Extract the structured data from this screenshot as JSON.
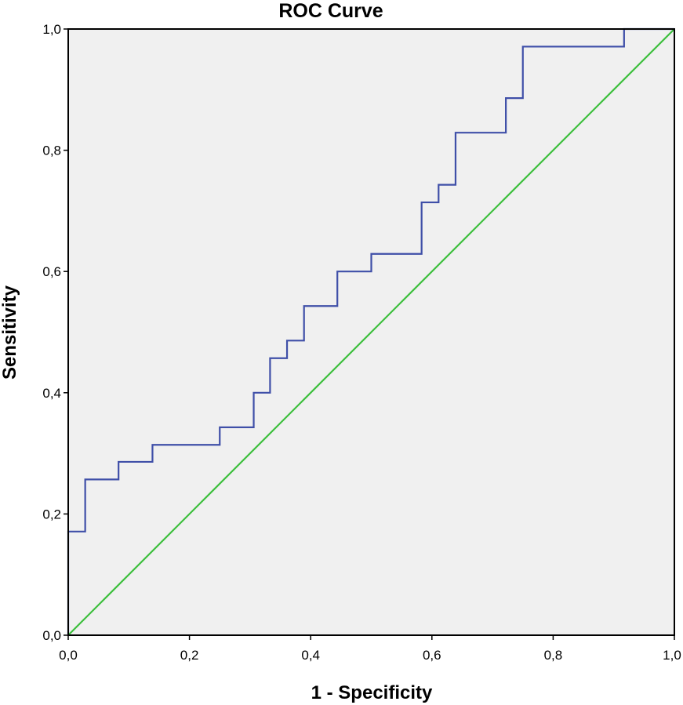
{
  "chart_data": {
    "type": "line",
    "title": "ROC Curve",
    "xlabel": "1 - Specificity",
    "ylabel": "Sensitivity",
    "xlim": [
      0,
      1
    ],
    "ylim": [
      0,
      1
    ],
    "x_ticks": [
      "0,0",
      "0,2",
      "0,4",
      "0,6",
      "0,8",
      "1,0"
    ],
    "y_ticks": [
      "0,0",
      "0,2",
      "0,4",
      "0,6",
      "0,8",
      "1,0"
    ],
    "grid": false,
    "plot_background": "#f0f0f0",
    "series": [
      {
        "color": "#3f4fa8",
        "step": true,
        "points": [
          [
            0.0,
            0.0
          ],
          [
            0.0,
            0.171
          ],
          [
            0.028,
            0.171
          ],
          [
            0.028,
            0.257
          ],
          [
            0.083,
            0.257
          ],
          [
            0.083,
            0.286
          ],
          [
            0.139,
            0.286
          ],
          [
            0.139,
            0.314
          ],
          [
            0.25,
            0.314
          ],
          [
            0.25,
            0.343
          ],
          [
            0.306,
            0.343
          ],
          [
            0.306,
            0.4
          ],
          [
            0.333,
            0.4
          ],
          [
            0.333,
            0.457
          ],
          [
            0.361,
            0.457
          ],
          [
            0.361,
            0.486
          ],
          [
            0.389,
            0.486
          ],
          [
            0.389,
            0.543
          ],
          [
            0.444,
            0.543
          ],
          [
            0.444,
            0.6
          ],
          [
            0.5,
            0.6
          ],
          [
            0.5,
            0.629
          ],
          [
            0.583,
            0.629
          ],
          [
            0.583,
            0.714
          ],
          [
            0.611,
            0.714
          ],
          [
            0.611,
            0.743
          ],
          [
            0.639,
            0.743
          ],
          [
            0.639,
            0.829
          ],
          [
            0.722,
            0.829
          ],
          [
            0.722,
            0.886
          ],
          [
            0.75,
            0.886
          ],
          [
            0.75,
            0.971
          ],
          [
            0.917,
            0.971
          ],
          [
            0.917,
            1.0
          ],
          [
            1.0,
            1.0
          ]
        ]
      },
      {
        "color": "#3cbf3c",
        "points": [
          [
            0,
            0
          ],
          [
            1,
            1
          ]
        ]
      }
    ]
  }
}
